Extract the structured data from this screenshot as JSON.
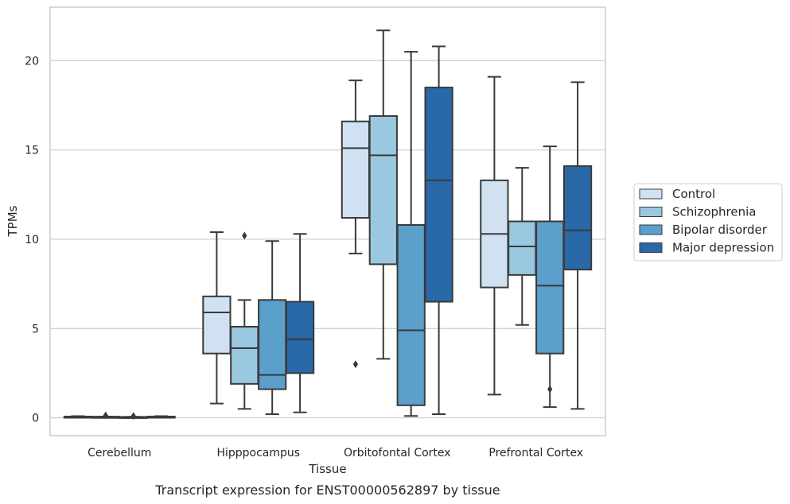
{
  "chart_data": {
    "type": "box",
    "title": "Transcript expression for ENST00000562897 by tissue",
    "xlabel": "Tissue",
    "ylabel": "TPMs",
    "ylim": [
      -1,
      23
    ],
    "yticks": [
      0,
      5,
      10,
      15,
      20
    ],
    "grid": "horizontal",
    "legend_position": "right",
    "categories": [
      "Cerebellum",
      "Hipppocampus",
      "Orbitofontal Cortex",
      "Prefrontal Cortex"
    ],
    "series": [
      {
        "name": "Control",
        "color": "#d0e2f2",
        "boxes": [
          {
            "whislo": 0.02,
            "q1": 0.03,
            "med": 0.05,
            "q3": 0.07,
            "whishi": 0.09,
            "fliers": []
          },
          {
            "whislo": 0.8,
            "q1": 3.6,
            "med": 5.9,
            "q3": 6.8,
            "whishi": 10.4,
            "fliers": []
          },
          {
            "whislo": 9.2,
            "q1": 11.2,
            "med": 15.1,
            "q3": 16.6,
            "whishi": 18.9,
            "fliers": [
              3.0
            ]
          },
          {
            "whislo": 1.3,
            "q1": 7.3,
            "med": 10.3,
            "q3": 13.3,
            "whishi": 19.1,
            "fliers": []
          }
        ]
      },
      {
        "name": "Schizophrenia",
        "color": "#9ac8e0",
        "boxes": [
          {
            "whislo": 0.02,
            "q1": 0.04,
            "med": 0.05,
            "q3": 0.06,
            "whishi": 0.07,
            "fliers": [
              0.13
            ]
          },
          {
            "whislo": 0.5,
            "q1": 1.9,
            "med": 3.9,
            "q3": 5.1,
            "whishi": 6.6,
            "fliers": [
              10.2
            ]
          },
          {
            "whislo": 3.3,
            "q1": 8.6,
            "med": 14.7,
            "q3": 16.9,
            "whishi": 21.7,
            "fliers": []
          },
          {
            "whislo": 5.2,
            "q1": 8.0,
            "med": 9.6,
            "q3": 11.0,
            "whishi": 14.0,
            "fliers": []
          }
        ]
      },
      {
        "name": "Bipolar disorder",
        "color": "#5b9fcb",
        "boxes": [
          {
            "whislo": 0.01,
            "q1": 0.02,
            "med": 0.03,
            "q3": 0.05,
            "whishi": 0.06,
            "fliers": [
              0.1
            ]
          },
          {
            "whislo": 0.2,
            "q1": 1.6,
            "med": 2.4,
            "q3": 6.6,
            "whishi": 9.9,
            "fliers": []
          },
          {
            "whislo": 0.1,
            "q1": 0.7,
            "med": 4.9,
            "q3": 10.8,
            "whishi": 20.5,
            "fliers": []
          },
          {
            "whislo": 0.6,
            "q1": 3.6,
            "med": 7.4,
            "q3": 11.0,
            "whishi": 15.2,
            "fliers": [
              1.6
            ]
          }
        ]
      },
      {
        "name": "Major depression",
        "color": "#2a69a8",
        "boxes": [
          {
            "whislo": 0.02,
            "q1": 0.03,
            "med": 0.05,
            "q3": 0.07,
            "whishi": 0.09,
            "fliers": []
          },
          {
            "whislo": 0.3,
            "q1": 2.5,
            "med": 4.4,
            "q3": 6.5,
            "whishi": 10.3,
            "fliers": []
          },
          {
            "whislo": 0.2,
            "q1": 6.5,
            "med": 13.3,
            "q3": 18.5,
            "whishi": 20.8,
            "fliers": []
          },
          {
            "whislo": 0.5,
            "q1": 8.3,
            "med": 10.5,
            "q3": 14.1,
            "whishi": 18.8,
            "fliers": []
          }
        ]
      }
    ]
  }
}
